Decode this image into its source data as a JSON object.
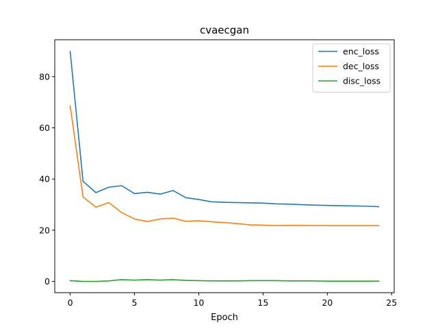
{
  "chart_data": {
    "type": "line",
    "title": "cvaecgan",
    "xlabel": "Epoch",
    "ylabel": "",
    "xlim": [
      -1.2,
      25.2
    ],
    "ylim": [
      -4.4,
      94.4
    ],
    "xticks": [
      0,
      5,
      10,
      15,
      20,
      25
    ],
    "yticks": [
      0,
      20,
      40,
      60,
      80
    ],
    "grid": false,
    "legend_position": "top-right",
    "x": [
      0,
      1,
      2,
      3,
      4,
      5,
      6,
      7,
      8,
      9,
      10,
      11,
      12,
      13,
      14,
      15,
      16,
      17,
      18,
      19,
      20,
      21,
      22,
      23,
      24
    ],
    "series": [
      {
        "name": "enc_loss",
        "color": "#1f77b4",
        "values": [
          89.8,
          39.1,
          34.7,
          36.8,
          37.4,
          34.3,
          34.8,
          34.1,
          35.5,
          32.7,
          32.0,
          31.1,
          30.9,
          30.8,
          30.7,
          30.6,
          30.3,
          30.2,
          30.0,
          29.8,
          29.7,
          29.6,
          29.5,
          29.4,
          29.2
        ]
      },
      {
        "name": "dec_loss",
        "color": "#ff7f0e",
        "values": [
          68.5,
          33.0,
          29.0,
          30.8,
          26.9,
          24.4,
          23.4,
          24.4,
          24.7,
          23.5,
          23.7,
          23.3,
          23.0,
          22.6,
          22.1,
          22.0,
          21.8,
          21.9,
          21.9,
          21.8,
          21.8,
          21.8,
          21.8,
          21.8,
          21.8
        ]
      },
      {
        "name": "disc_loss",
        "color": "#2ca02c",
        "values": [
          0.3,
          0.0,
          0.0,
          0.2,
          0.7,
          0.5,
          0.7,
          0.5,
          0.7,
          0.4,
          0.3,
          0.2,
          0.2,
          0.2,
          0.3,
          0.3,
          0.3,
          0.2,
          0.2,
          0.2,
          0.1,
          0.1,
          0.1,
          0.1,
          0.1
        ]
      }
    ]
  }
}
